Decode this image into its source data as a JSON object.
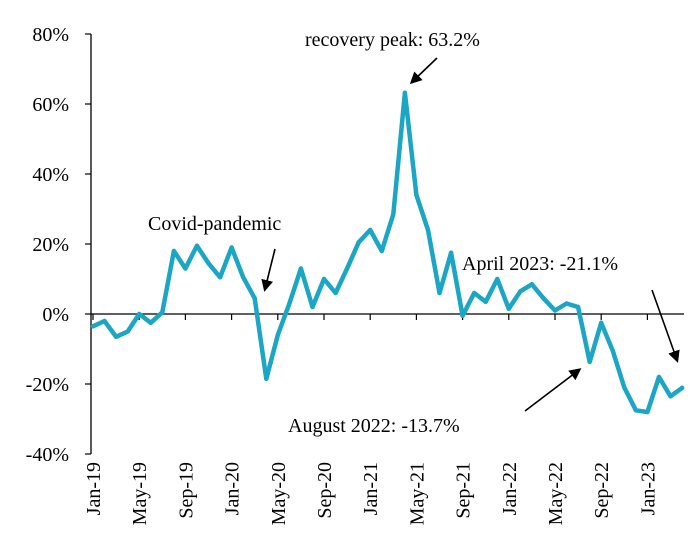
{
  "chart_data": {
    "type": "line",
    "title": "",
    "xlabel": "",
    "ylabel": "",
    "y_unit": "%",
    "ylim": [
      -40,
      80
    ],
    "y_ticks": [
      80,
      60,
      40,
      20,
      0,
      -20,
      -40
    ],
    "y_tick_labels": [
      "80%",
      "60%",
      "40%",
      "20%",
      "0%",
      "-20%",
      "-40%"
    ],
    "x_tick_labels": [
      "Jan-19",
      "May-19",
      "Sep-19",
      "Jan-20",
      "May-20",
      "Sep-20",
      "Jan-21",
      "May-21",
      "Sep-21",
      "Jan-22",
      "May-22",
      "Sep-22",
      "Jan-23"
    ],
    "grid": false,
    "legend": "none",
    "line_color": "#1AA6C4",
    "series": [
      {
        "x": [
          "2019-01",
          "2019-02",
          "2019-03",
          "2019-04",
          "2019-05",
          "2019-06",
          "2019-07",
          "2019-08",
          "2019-09",
          "2019-10",
          "2019-11",
          "2019-12",
          "2020-01",
          "2020-02",
          "2020-03",
          "2020-04",
          "2020-05",
          "2020-06",
          "2020-07",
          "2020-08",
          "2020-09",
          "2020-10",
          "2020-11",
          "2020-12",
          "2021-01",
          "2021-02",
          "2021-03",
          "2021-04",
          "2021-05",
          "2021-06",
          "2021-07",
          "2021-08",
          "2021-09",
          "2021-10",
          "2021-11",
          "2021-12",
          "2022-01",
          "2022-02",
          "2022-03",
          "2022-04",
          "2022-05",
          "2022-06",
          "2022-07",
          "2022-08",
          "2022-09",
          "2022-10",
          "2022-11",
          "2022-12",
          "2023-01",
          "2023-02",
          "2023-03",
          "2023-04"
        ],
        "values": [
          -3.5,
          -2.0,
          -6.5,
          -5.0,
          0.0,
          -2.5,
          0.5,
          18.0,
          13.0,
          19.5,
          14.5,
          10.5,
          19.0,
          10.5,
          4.5,
          -18.5,
          -6.0,
          3.0,
          13.0,
          2.0,
          10.0,
          6.0,
          13.0,
          20.5,
          24.0,
          18.0,
          28.5,
          63.2,
          34.0,
          24.0,
          6.0,
          17.5,
          -0.5,
          6.0,
          3.5,
          10.0,
          1.5,
          6.5,
          8.5,
          4.5,
          1.0,
          3.0,
          2.0,
          -13.7,
          -2.5,
          -10.5,
          -21.0,
          -27.5,
          -28.0,
          -18.0,
          -23.5,
          -21.1
        ]
      }
    ],
    "annotations": [
      {
        "text": "recovery peak: 63.2%",
        "x": "2021-04",
        "y": 63.2
      },
      {
        "text": "Covid-pandemic",
        "x": "2020-03",
        "y": 4.5
      },
      {
        "text": "April 2023: -21.1%",
        "x": "2023-04",
        "y": -21.1
      },
      {
        "text": "August 2022: -13.7%",
        "x": "2022-08",
        "y": -13.7
      }
    ]
  }
}
